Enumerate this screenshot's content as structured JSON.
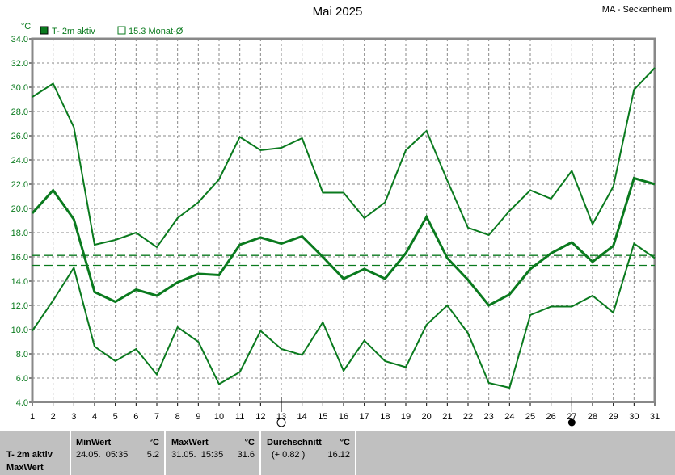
{
  "chart_data": {
    "type": "line",
    "title": "Mai 2025",
    "station": "MA - Seckenheim",
    "ylabel": "°C",
    "ylim": [
      4,
      34
    ],
    "yticks": [
      "4.0",
      "6.0",
      "8.0",
      "10.0",
      "12.0",
      "14.0",
      "16.0",
      "18.0",
      "20.0",
      "22.0",
      "24.0",
      "26.0",
      "28.0",
      "30.0",
      "32.0",
      "34.0"
    ],
    "x": [
      1,
      2,
      3,
      4,
      5,
      6,
      7,
      8,
      9,
      10,
      11,
      12,
      13,
      14,
      15,
      16,
      17,
      18,
      19,
      20,
      21,
      22,
      23,
      24,
      25,
      26,
      27,
      28,
      29,
      30,
      31
    ],
    "grid": true,
    "legend": [
      {
        "label": "T- 2m aktiv",
        "marker": "filled-square"
      },
      {
        "label": "15.3 Monat-Ø",
        "marker": "open-square"
      }
    ],
    "color": "#0a7a1e",
    "series": [
      {
        "role": "max",
        "values": [
          29.2,
          30.3,
          26.7,
          17.0,
          17.4,
          18.0,
          16.8,
          19.2,
          20.5,
          22.4,
          25.9,
          24.8,
          25.0,
          25.8,
          21.3,
          21.3,
          19.2,
          20.5,
          24.8,
          26.4,
          22.3,
          18.4,
          17.8,
          19.8,
          21.5,
          20.8,
          23.1,
          18.7,
          21.8,
          29.8,
          31.6
        ]
      },
      {
        "role": "mean",
        "values": [
          19.6,
          21.5,
          19.1,
          13.1,
          12.3,
          13.3,
          12.8,
          13.9,
          14.6,
          14.5,
          17.0,
          17.6,
          17.1,
          17.7,
          16.0,
          14.2,
          15.0,
          14.2,
          16.3,
          19.3,
          15.9,
          14.1,
          12.0,
          12.9,
          15.0,
          16.3,
          17.2,
          15.6,
          16.9,
          22.5,
          22.0
        ]
      },
      {
        "role": "min",
        "values": [
          9.9,
          12.4,
          15.1,
          8.6,
          7.4,
          8.4,
          6.3,
          10.2,
          9.0,
          5.5,
          6.5,
          9.9,
          8.4,
          7.9,
          10.6,
          6.6,
          9.1,
          7.4,
          6.9,
          10.4,
          12.0,
          9.7,
          5.6,
          5.2,
          11.2,
          11.9,
          11.9,
          12.8,
          11.4,
          17.1,
          15.9
        ]
      }
    ],
    "reference_lines": [
      16.12,
      15.3
    ],
    "moon_phases": [
      {
        "day": 13,
        "phase": "full-moon"
      },
      {
        "day": 27,
        "phase": "new-moon"
      }
    ]
  },
  "panel": {
    "row_label1": "T- 2m aktiv",
    "row_label2": "MaxWert",
    "min": {
      "title": "MinWert",
      "unit": "°C",
      "date": "24.05.  05:35",
      "value": "5.2"
    },
    "max": {
      "title": "MaxWert",
      "unit": "°C",
      "date": "31.05.  15:35",
      "value": "31.6"
    },
    "avg": {
      "title": "Durchschnitt",
      "unit": "°C",
      "delta": "(+ 0.82 )",
      "value": "16.12"
    }
  }
}
